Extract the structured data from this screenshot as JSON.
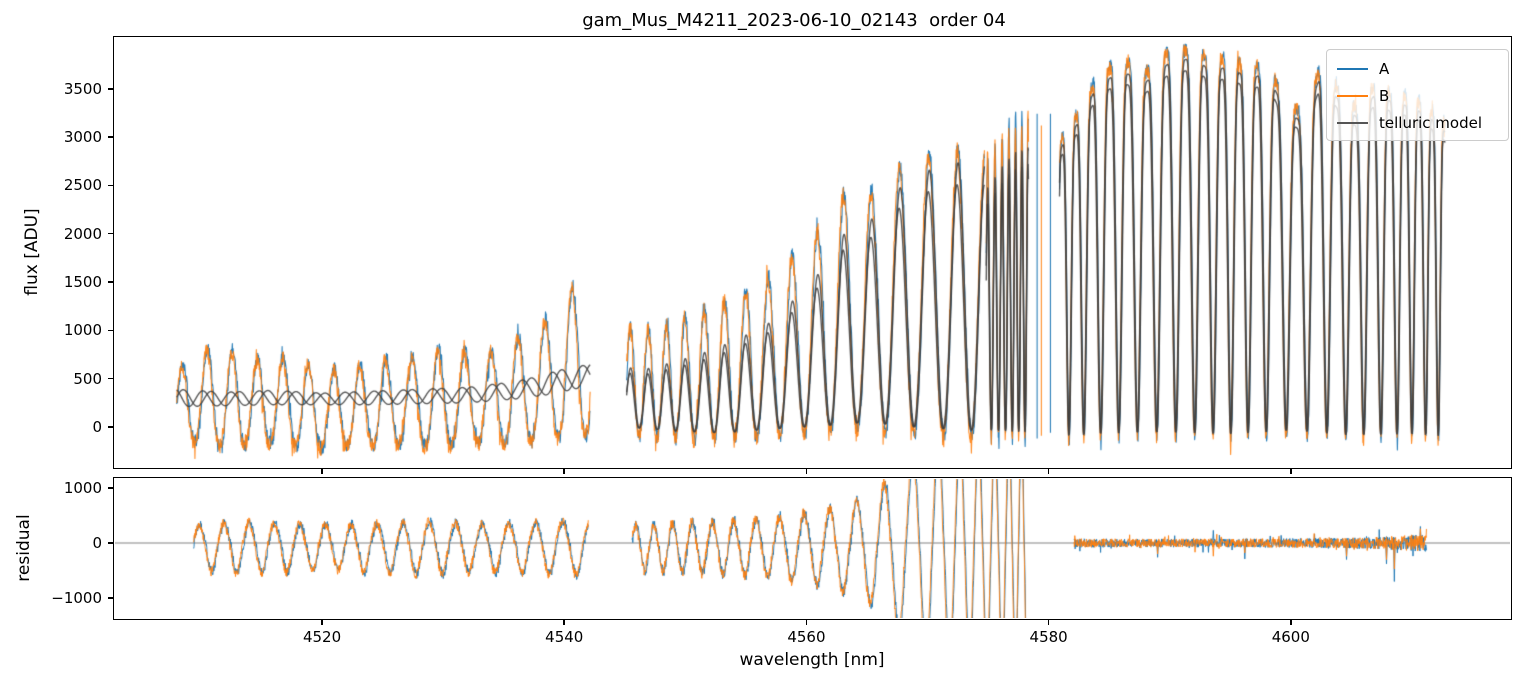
{
  "title": "gam_Mus_M4211_2023-06-10_02143  order 04",
  "chart_data": {
    "type": "line",
    "title": "gam_Mus_M4211_2023-06-10_02143  order 04",
    "xlabel": "wavelength [nm]",
    "x": {
      "lim": [
        4502.9,
        4618.1
      ],
      "ticks": [
        {
          "v": 4520,
          "label": "4520"
        },
        {
          "v": 4540,
          "label": "4540"
        },
        {
          "v": 4560,
          "label": "4560"
        },
        {
          "v": 4580,
          "label": "4580"
        },
        {
          "v": 4600,
          "label": "4600"
        }
      ]
    },
    "panels": {
      "flux": {
        "ylabel": "flux [ADU]",
        "ylim": [
          -414,
          4025
        ],
        "yticks": [
          {
            "v": 0,
            "label": "0"
          },
          {
            "v": 500,
            "label": "500"
          },
          {
            "v": 1000,
            "label": "1000"
          },
          {
            "v": 1500,
            "label": "1500"
          },
          {
            "v": 2000,
            "label": "2000"
          },
          {
            "v": 2500,
            "label": "2500"
          },
          {
            "v": 3000,
            "label": "3000"
          },
          {
            "v": 3500,
            "label": "3500"
          }
        ]
      },
      "residual": {
        "ylabel": "residual",
        "ylim": [
          -1364,
          1164
        ],
        "yticks": [
          {
            "v": -1000,
            "label": "−1000"
          },
          {
            "v": 0,
            "label": "0"
          },
          {
            "v": 1000,
            "label": "1000"
          }
        ],
        "zero_line": 0
      }
    },
    "legend": {
      "entries": [
        {
          "label": "A",
          "color": "#1f77b4"
        },
        {
          "label": "B",
          "color": "#ff7f0e"
        },
        {
          "label": "telluric model",
          "color": "#555555"
        }
      ]
    },
    "colors": {
      "A": "#1f77b4",
      "B": "#ff7f0e",
      "model": "#3d3d3d",
      "zero_line": "#808080",
      "spine": "#000000"
    },
    "flux_segments": [
      {
        "name": "fringe-region",
        "x0": 4508.0,
        "x1": 4542.15,
        "shape": "fringe",
        "noise": 75,
        "period": [
          [
            4508,
            2.05
          ],
          [
            4542,
            2.25
          ]
        ],
        "peak": [
          [
            4508,
            620
          ],
          [
            4509.5,
            760
          ],
          [
            4511,
            840
          ],
          [
            4513,
            780
          ],
          [
            4515,
            700
          ],
          [
            4517,
            730
          ],
          [
            4519,
            640
          ],
          [
            4521,
            600
          ],
          [
            4523,
            640
          ],
          [
            4525,
            700
          ],
          [
            4527,
            730
          ],
          [
            4529,
            800
          ],
          [
            4531,
            830
          ],
          [
            4533,
            740
          ],
          [
            4535,
            840
          ],
          [
            4536.5,
            950
          ],
          [
            4538,
            1060
          ],
          [
            4539.5,
            1260
          ],
          [
            4541,
            1500
          ],
          [
            4542.15,
            1560
          ]
        ],
        "trough": [
          [
            4508,
            -130
          ],
          [
            4512,
            -190
          ],
          [
            4516,
            -170
          ],
          [
            4520,
            -210
          ],
          [
            4524,
            -180
          ],
          [
            4528,
            -200
          ],
          [
            4532,
            -170
          ],
          [
            4536,
            -160
          ],
          [
            4539,
            -120
          ],
          [
            4542.15,
            -60
          ]
        ],
        "model": {
          "mode": "own",
          "hi": [
            [
              4508,
              390
            ],
            [
              4512,
              360
            ],
            [
              4516,
              380
            ],
            [
              4520,
              350
            ],
            [
              4524,
              370
            ],
            [
              4528,
              390
            ],
            [
              4532,
              410
            ],
            [
              4536,
              470
            ],
            [
              4538,
              530
            ],
            [
              4540,
              600
            ],
            [
              4542.15,
              650
            ]
          ],
          "lo": [
            [
              4508,
              210
            ],
            [
              4516,
              230
            ],
            [
              4524,
              230
            ],
            [
              4532,
              250
            ],
            [
              4536,
              290
            ],
            [
              4539,
              340
            ],
            [
              4542.15,
              430
            ]
          ],
          "period_scale": 1.12,
          "b_phase": 0.3
        }
      },
      {
        "name": "growing-band",
        "x0": 4545.15,
        "x1": 4574.7,
        "shape": "band",
        "noise": 85,
        "period": [
          [
            4545.15,
            1.45
          ],
          [
            4550,
            1.55
          ],
          [
            4555,
            1.8
          ],
          [
            4560,
            2.1
          ],
          [
            4565,
            2.3
          ],
          [
            4570,
            2.45
          ],
          [
            4574.7,
            2.2
          ]
        ],
        "peak": [
          [
            4545.15,
            1030
          ],
          [
            4547,
            1010
          ],
          [
            4549,
            1100
          ],
          [
            4551,
            1190
          ],
          [
            4553,
            1300
          ],
          [
            4555,
            1420
          ],
          [
            4557,
            1560
          ],
          [
            4559,
            1800
          ],
          [
            4561,
            2050
          ],
          [
            4563,
            2420
          ],
          [
            4564.5,
            2300
          ],
          [
            4566,
            2560
          ],
          [
            4568,
            2700
          ],
          [
            4570,
            2820
          ],
          [
            4572,
            2870
          ],
          [
            4574.7,
            2820
          ]
        ],
        "trough": [
          [
            4545.15,
            -70
          ],
          [
            4549,
            -110
          ],
          [
            4553,
            -130
          ],
          [
            4557,
            -90
          ],
          [
            4561,
            -60
          ],
          [
            4565,
            -20
          ],
          [
            4569,
            -70
          ],
          [
            4574.7,
            -110
          ]
        ],
        "model": {
          "mode": "frac",
          "f": [
            [
              4545.15,
              0.62
            ],
            [
              4551,
              0.66
            ],
            [
              4557,
              0.71
            ],
            [
              4561,
              0.78
            ],
            [
              4564,
              0.85
            ],
            [
              4568,
              0.93
            ],
            [
              4574.7,
              0.97
            ]
          ],
          "lo_off": 70,
          "b_scale": 0.92
        }
      },
      {
        "name": "spike-cluster",
        "x0": 4574.85,
        "x1": 4578.35,
        "shape": "band",
        "noise": 95,
        "period": [
          [
            4574.85,
            0.62
          ],
          [
            4578.35,
            0.5
          ]
        ],
        "peak": [
          [
            4574.85,
            2800
          ],
          [
            4576,
            3020
          ],
          [
            4577,
            3180
          ],
          [
            4578.35,
            3240
          ]
        ],
        "trough": [
          [
            4574.85,
            -90
          ],
          [
            4578.35,
            -110
          ]
        ],
        "model": {
          "mode": "frac",
          "f": [
            [
              4574.85,
              0.88
            ],
            [
              4578.35,
              0.9
            ]
          ],
          "lo_off": 60,
          "b_scale": 0.94
        }
      },
      {
        "name": "telluric-band",
        "x0": 4580.9,
        "x1": 4612.75,
        "shape": "absorption",
        "noise": 70,
        "period": [
          [
            4580.9,
            1.05
          ],
          [
            4584,
            1.45
          ],
          [
            4588,
            1.6
          ],
          [
            4592,
            1.55
          ],
          [
            4596,
            1.4
          ],
          [
            4600,
            1.75
          ],
          [
            4604,
            1.55
          ],
          [
            4608,
            1.35
          ],
          [
            4612.75,
            0.95
          ]
        ],
        "peak": [
          [
            4581,
            2980
          ],
          [
            4582.5,
            3260
          ],
          [
            4584,
            3640
          ],
          [
            4586,
            3800
          ],
          [
            4588,
            3680
          ],
          [
            4590,
            3890
          ],
          [
            4592,
            3940
          ],
          [
            4593.5,
            3790
          ],
          [
            4595,
            3860
          ],
          [
            4596.5,
            3700
          ],
          [
            4598,
            3790
          ],
          [
            4599.5,
            3380
          ],
          [
            4601,
            3250
          ],
          [
            4602.5,
            3760
          ],
          [
            4604,
            3480
          ],
          [
            4605.5,
            3300
          ],
          [
            4607,
            3560
          ],
          [
            4608.5,
            3460
          ],
          [
            4610,
            3420
          ],
          [
            4611.5,
            3300
          ],
          [
            4612.75,
            3150
          ]
        ],
        "trough": [
          [
            4581,
            -130
          ],
          [
            4585,
            -100
          ],
          [
            4590,
            -90
          ],
          [
            4595,
            -110
          ],
          [
            4600,
            -70
          ],
          [
            4605,
            -120
          ],
          [
            4610,
            -110
          ],
          [
            4612.75,
            -130
          ]
        ],
        "model": {
          "mode": "frac",
          "f": [
            [
              4581,
              0.97
            ],
            [
              4612.75,
              0.97
            ]
          ],
          "lo_off": 40,
          "b_scale": 0.97
        }
      }
    ],
    "flux_spike_lines": [
      {
        "x": 4579.05,
        "top": 3240,
        "bottom": -120,
        "series": "A"
      },
      {
        "x": 4579.4,
        "top": 3120,
        "bottom": -90,
        "series": "B"
      },
      {
        "x": 4580.15,
        "top": 3240,
        "bottom": -60,
        "series": "A"
      }
    ],
    "residual_segments": [
      {
        "name": "fringe-residual",
        "x0": 4509.4,
        "x1": 4542.0,
        "mode": "osc",
        "period": [
          [
            4509,
            2.05
          ],
          [
            4542,
            2.25
          ]
        ],
        "amp": [
          [
            4509.4,
            360
          ],
          [
            4513,
            420
          ],
          [
            4517,
            390
          ],
          [
            4521,
            370
          ],
          [
            4525,
            400
          ],
          [
            4529,
            430
          ],
          [
            4533,
            390
          ],
          [
            4537,
            410
          ],
          [
            4542,
            440
          ]
        ],
        "asym": 1.25,
        "center": -40,
        "noise": 85
      },
      {
        "name": "growing-residual",
        "x0": 4545.6,
        "x1": 4578.2,
        "mode": "osc",
        "period": [
          [
            4545.6,
            1.45
          ],
          [
            4552,
            1.7
          ],
          [
            4558,
            2.0
          ],
          [
            4563,
            2.2
          ],
          [
            4568,
            2.4
          ],
          [
            4573,
            1.6
          ],
          [
            4578.2,
            0.9
          ]
        ],
        "amp": [
          [
            4545.6,
            380
          ],
          [
            4550,
            430
          ],
          [
            4554,
            470
          ],
          [
            4558,
            540
          ],
          [
            4561,
            640
          ],
          [
            4564,
            800
          ],
          [
            4566,
            1050
          ],
          [
            4568,
            1500
          ],
          [
            4570,
            1950
          ],
          [
            4578.2,
            2050
          ]
        ],
        "asym": 1.1,
        "center": -60,
        "noise": 100
      },
      {
        "name": "flat-noise-residual",
        "x0": 4582.1,
        "x1": 4611.2,
        "mode": "noise",
        "sigma": [
          [
            4582.1,
            85
          ],
          [
            4590,
            80
          ],
          [
            4598,
            85
          ],
          [
            4604,
            95
          ],
          [
            4607,
            115
          ],
          [
            4609.5,
            150
          ],
          [
            4611.2,
            170
          ]
        ],
        "center": 0
      }
    ],
    "residual_spikes": [
      {
        "x": 4608.55,
        "A": -700,
        "B": -470
      },
      {
        "x": 4607.9,
        "A": -380,
        "B": -300
      },
      {
        "x": 4604.6,
        "A": -300,
        "B": -240
      },
      {
        "x": 4596.2,
        "A": -290,
        "B": -180
      },
      {
        "x": 4589.0,
        "A": -260,
        "B": -200
      },
      {
        "x": 4593.6,
        "A": 230,
        "B": -240
      },
      {
        "x": 4610.7,
        "A": 300,
        "B": 260
      }
    ]
  }
}
